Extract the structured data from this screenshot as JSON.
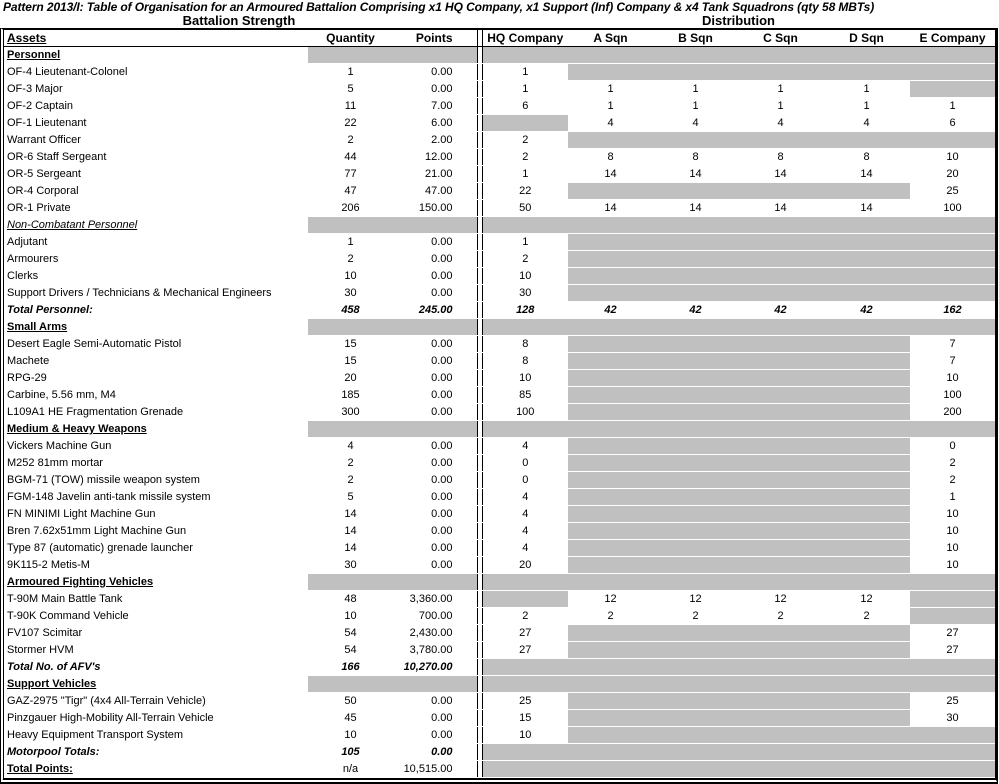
{
  "title": "Pattern 2013/I: Table of Organisation for an Armoured Battalion Comprising x1 HQ Company, x1 Support (Inf) Company & x4 Tank Squadrons (qty 58 MBTs)",
  "group_headers": {
    "left": "Battalion Strength",
    "right": "Distribution"
  },
  "columns": {
    "assets": "Assets",
    "quantity": "Quantity",
    "points": "Points",
    "hq": "HQ Company",
    "a": "A Sqn",
    "b": "B Sqn",
    "c": "C Sqn",
    "d": "D Sqn",
    "e": "E Company"
  },
  "colors": {
    "grey_fill": "#c0c0c0",
    "border": "#000000",
    "background": "#ffffff",
    "text": "#000000"
  },
  "rows": [
    {
      "type": "section",
      "label": "Personnel",
      "cells": [
        null,
        null,
        null,
        null,
        null,
        null,
        null,
        null
      ]
    },
    {
      "type": "item",
      "label": "OF-4 Lieutenant-Colonel",
      "cells": [
        "1",
        "0.00",
        "1",
        null,
        null,
        null,
        null,
        null
      ]
    },
    {
      "type": "item",
      "label": "OF-3 Major",
      "cells": [
        "5",
        "0.00",
        "1",
        "1",
        "1",
        "1",
        "1",
        null
      ]
    },
    {
      "type": "item",
      "label": "OF-2 Captain",
      "cells": [
        "11",
        "7.00",
        "6",
        "1",
        "1",
        "1",
        "1",
        "1"
      ]
    },
    {
      "type": "item",
      "label": "OF-1 Lieutenant",
      "cells": [
        "22",
        "6.00",
        null,
        "4",
        "4",
        "4",
        "4",
        "6"
      ]
    },
    {
      "type": "item",
      "label": "Warrant Officer",
      "cells": [
        "2",
        "2.00",
        "2",
        null,
        null,
        null,
        null,
        null
      ]
    },
    {
      "type": "item",
      "label": "OR-6 Staff Sergeant",
      "cells": [
        "44",
        "12.00",
        "2",
        "8",
        "8",
        "8",
        "8",
        "10"
      ]
    },
    {
      "type": "item",
      "label": "OR-5 Sergeant",
      "cells": [
        "77",
        "21.00",
        "1",
        "14",
        "14",
        "14",
        "14",
        "20"
      ]
    },
    {
      "type": "item",
      "label": "OR-4 Corporal",
      "cells": [
        "47",
        "47.00",
        "22",
        null,
        null,
        null,
        null,
        "25"
      ]
    },
    {
      "type": "item",
      "label": "OR-1 Private",
      "cells": [
        "206",
        "150.00",
        "50",
        "14",
        "14",
        "14",
        "14",
        "100"
      ]
    },
    {
      "type": "section-italic",
      "label": "Non-Combatant Personnel",
      "cells": [
        null,
        null,
        null,
        null,
        null,
        null,
        null,
        null
      ]
    },
    {
      "type": "item",
      "label": "Adjutant",
      "cells": [
        "1",
        "0.00",
        "1",
        null,
        null,
        null,
        null,
        null
      ]
    },
    {
      "type": "item",
      "label": "Armourers",
      "cells": [
        "2",
        "0.00",
        "2",
        null,
        null,
        null,
        null,
        null
      ]
    },
    {
      "type": "item",
      "label": "Clerks",
      "cells": [
        "10",
        "0.00",
        "10",
        null,
        null,
        null,
        null,
        null
      ]
    },
    {
      "type": "item",
      "label": "Support Drivers / Technicians & Mechanical Engineers",
      "cells": [
        "30",
        "0.00",
        "30",
        null,
        null,
        null,
        null,
        null
      ]
    },
    {
      "type": "total",
      "label": "Total Personnel:",
      "cells": [
        "458",
        "245.00",
        "128",
        "42",
        "42",
        "42",
        "42",
        "162"
      ]
    },
    {
      "type": "section",
      "label": "Small Arms",
      "cells": [
        null,
        null,
        null,
        null,
        null,
        null,
        null,
        null
      ]
    },
    {
      "type": "item",
      "label": "Desert Eagle Semi-Automatic Pistol",
      "cells": [
        "15",
        "0.00",
        "8",
        null,
        null,
        null,
        null,
        "7"
      ]
    },
    {
      "type": "item",
      "label": "Machete",
      "cells": [
        "15",
        "0.00",
        "8",
        null,
        null,
        null,
        null,
        "7"
      ]
    },
    {
      "type": "item",
      "label": "RPG-29",
      "cells": [
        "20",
        "0.00",
        "10",
        null,
        null,
        null,
        null,
        "10"
      ]
    },
    {
      "type": "item",
      "label": "Carbine, 5.56 mm, M4",
      "cells": [
        "185",
        "0.00",
        "85",
        null,
        null,
        null,
        null,
        "100"
      ]
    },
    {
      "type": "item",
      "label": "L109A1 HE Fragmentation Grenade",
      "cells": [
        "300",
        "0.00",
        "100",
        null,
        null,
        null,
        null,
        "200"
      ]
    },
    {
      "type": "section",
      "label": "Medium & Heavy Weapons",
      "cells": [
        null,
        null,
        null,
        null,
        null,
        null,
        null,
        null
      ]
    },
    {
      "type": "item",
      "label": "Vickers Machine Gun",
      "cells": [
        "4",
        "0.00",
        "4",
        null,
        null,
        null,
        null,
        "0"
      ]
    },
    {
      "type": "item",
      "label": "M252 81mm mortar",
      "cells": [
        "2",
        "0.00",
        "0",
        null,
        null,
        null,
        null,
        "2"
      ]
    },
    {
      "type": "item",
      "label": "BGM-71 (TOW) missile weapon system",
      "cells": [
        "2",
        "0.00",
        "0",
        null,
        null,
        null,
        null,
        "2"
      ]
    },
    {
      "type": "item",
      "label": "FGM-148 Javelin anti-tank missile system",
      "cells": [
        "5",
        "0.00",
        "4",
        null,
        null,
        null,
        null,
        "1"
      ]
    },
    {
      "type": "item",
      "label": "FN MINIMI Light Machine Gun",
      "cells": [
        "14",
        "0.00",
        "4",
        null,
        null,
        null,
        null,
        "10"
      ]
    },
    {
      "type": "item",
      "label": "Bren 7.62x51mm Light Machine Gun",
      "cells": [
        "14",
        "0.00",
        "4",
        null,
        null,
        null,
        null,
        "10"
      ]
    },
    {
      "type": "item",
      "label": "Type 87 (automatic) grenade launcher",
      "cells": [
        "14",
        "0.00",
        "4",
        null,
        null,
        null,
        null,
        "10"
      ]
    },
    {
      "type": "item",
      "label": "9K115-2 Metis-M",
      "cells": [
        "30",
        "0.00",
        "20",
        null,
        null,
        null,
        null,
        "10"
      ]
    },
    {
      "type": "section",
      "label": "Armoured Fighting Vehicles",
      "cells": [
        null,
        null,
        null,
        null,
        null,
        null,
        null,
        null
      ]
    },
    {
      "type": "item",
      "label": "T-90M  Main Battle Tank",
      "cells": [
        "48",
        "3,360.00",
        null,
        "12",
        "12",
        "12",
        "12",
        null
      ]
    },
    {
      "type": "item",
      "label": "T-90K Command Vehicle",
      "cells": [
        "10",
        "700.00",
        "2",
        "2",
        "2",
        "2",
        "2",
        null
      ]
    },
    {
      "type": "item",
      "label": "FV107 Scimitar",
      "cells": [
        "54",
        "2,430.00",
        "27",
        null,
        null,
        null,
        null,
        "27"
      ]
    },
    {
      "type": "item",
      "label": "Stormer HVM",
      "cells": [
        "54",
        "3,780.00",
        "27",
        null,
        null,
        null,
        null,
        "27"
      ]
    },
    {
      "type": "total",
      "label": "Total No. of AFV's",
      "cells": [
        "166",
        "10,270.00",
        null,
        null,
        null,
        null,
        null,
        null
      ]
    },
    {
      "type": "section",
      "label": "Support Vehicles",
      "cells": [
        null,
        null,
        null,
        null,
        null,
        null,
        null,
        null
      ]
    },
    {
      "type": "item",
      "label": "GAZ-2975 \"Tigr\" (4x4 All-Terrain Vehicle)",
      "cells": [
        "50",
        "0.00",
        "25",
        null,
        null,
        null,
        null,
        "25"
      ]
    },
    {
      "type": "item",
      "label": "Pinzgauer High-Mobility All-Terrain Vehicle",
      "cells": [
        "45",
        "0.00",
        "15",
        null,
        null,
        null,
        null,
        "30"
      ]
    },
    {
      "type": "item",
      "label": "Heavy Equipment Transport System",
      "cells": [
        "10",
        "0.00",
        "10",
        null,
        null,
        null,
        null,
        null
      ]
    },
    {
      "type": "total",
      "label": "Motorpool Totals:",
      "cells": [
        "105",
        "0.00",
        null,
        null,
        null,
        null,
        null,
        null
      ]
    },
    {
      "type": "total-underline",
      "label": "Total Points:",
      "cells": [
        "n/a",
        "10,515.00",
        null,
        null,
        null,
        null,
        null,
        null
      ]
    }
  ]
}
